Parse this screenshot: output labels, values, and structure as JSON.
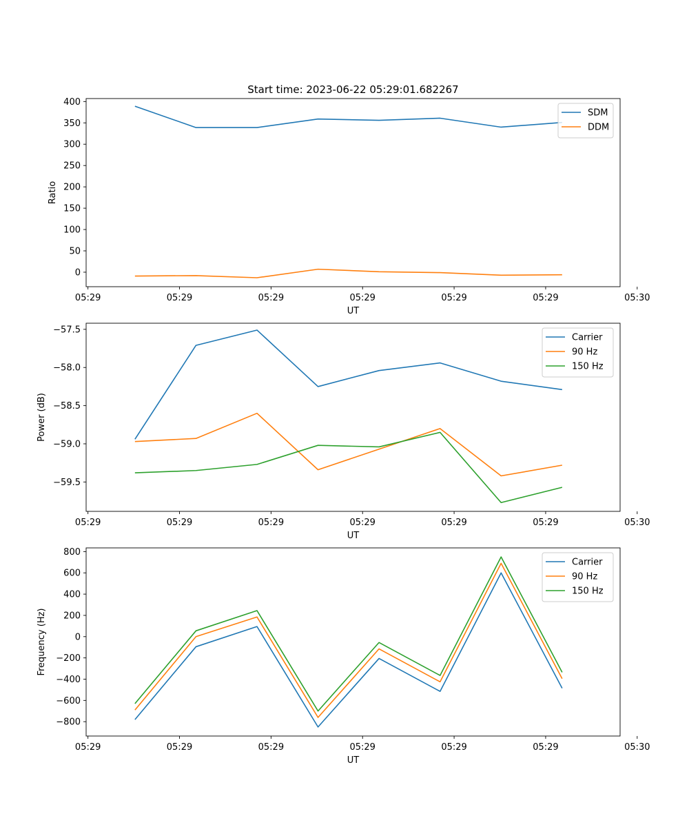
{
  "chart_data": [
    {
      "type": "line",
      "title": "Start time: 2023-06-22 05:29:01.682267",
      "xlabel": "UT",
      "ylabel": "Ratio",
      "x": [
        1,
        2,
        3,
        4,
        5,
        6,
        7,
        8
      ],
      "xlim": [
        0.2,
        8.95
      ],
      "x_ticks": [
        0.23,
        1.73,
        3.23,
        4.73,
        6.23,
        7.73,
        9.23
      ],
      "x_tick_labels": [
        "05:29",
        "05:29",
        "05:29",
        "05:29",
        "05:29",
        "05:29",
        "05:30"
      ],
      "ylim": [
        -34,
        407
      ],
      "y_ticks": [
        0,
        50,
        100,
        150,
        200,
        250,
        300,
        350,
        400
      ],
      "y_tick_labels": [
        "0",
        "50",
        "100",
        "150",
        "200",
        "250",
        "300",
        "350",
        "400"
      ],
      "legend": "top-right",
      "series": [
        {
          "name": "SDM",
          "color": "#1f77b4",
          "values": [
            389,
            339,
            339,
            359,
            356,
            361,
            340,
            351
          ]
        },
        {
          "name": "DDM",
          "color": "#ff7f0e",
          "values": [
            -9,
            -8,
            -13,
            7,
            1,
            -1,
            -7,
            -6
          ]
        }
      ]
    },
    {
      "type": "line",
      "title": "",
      "xlabel": "UT",
      "ylabel": "Power (dB)",
      "x": [
        1,
        2,
        3,
        4,
        5,
        6,
        7,
        8
      ],
      "xlim": [
        0.2,
        8.95
      ],
      "x_ticks": [
        0.23,
        1.73,
        3.23,
        4.73,
        6.23,
        7.73,
        9.23
      ],
      "x_tick_labels": [
        "05:29",
        "05:29",
        "05:29",
        "05:29",
        "05:29",
        "05:29",
        "05:30"
      ],
      "ylim": [
        -59.885,
        -57.42
      ],
      "y_ticks": [
        -59.5,
        -59.0,
        -58.5,
        -58.0,
        -57.5
      ],
      "y_tick_labels": [
        "−59.5",
        "−59.0",
        "−58.5",
        "−58.0",
        "−57.5"
      ],
      "legend": "top-right",
      "series": [
        {
          "name": "Carrier",
          "color": "#1f77b4",
          "values": [
            -58.94,
            -57.71,
            -57.51,
            -58.25,
            -58.04,
            -57.94,
            -58.18,
            -58.29
          ]
        },
        {
          "name": "90 Hz",
          "color": "#ff7f0e",
          "values": [
            -58.97,
            -58.93,
            -58.6,
            -59.34,
            -59.07,
            -58.8,
            -59.42,
            -59.28
          ]
        },
        {
          "name": "150 Hz",
          "color": "#2ca02c",
          "values": [
            -59.38,
            -59.35,
            -59.27,
            -59.02,
            -59.04,
            -58.85,
            -59.77,
            -59.57
          ]
        }
      ]
    },
    {
      "type": "line",
      "title": "",
      "xlabel": "UT",
      "ylabel": "Frequency (Hz)",
      "x": [
        1,
        2,
        3,
        4,
        5,
        6,
        7,
        8
      ],
      "xlim": [
        0.2,
        8.95
      ],
      "x_ticks": [
        0.23,
        1.73,
        3.23,
        4.73,
        6.23,
        7.73,
        9.23
      ],
      "x_tick_labels": [
        "05:29",
        "05:29",
        "05:29",
        "05:29",
        "05:29",
        "05:29",
        "05:30"
      ],
      "ylim": [
        -935,
        835
      ],
      "y_ticks": [
        -800,
        -600,
        -400,
        -200,
        0,
        200,
        400,
        600,
        800
      ],
      "y_tick_labels": [
        "−800",
        "−600",
        "−400",
        "−200",
        "0",
        "200",
        "400",
        "600",
        "800"
      ],
      "legend": "top-right",
      "series": [
        {
          "name": "Carrier",
          "color": "#1f77b4",
          "values": [
            -780,
            -95,
            95,
            -850,
            -205,
            -515,
            600,
            -485
          ]
        },
        {
          "name": "90 Hz",
          "color": "#ff7f0e",
          "values": [
            -690,
            0,
            185,
            -760,
            -115,
            -425,
            690,
            -395
          ]
        },
        {
          "name": "150 Hz",
          "color": "#2ca02c",
          "values": [
            -630,
            55,
            245,
            -700,
            -55,
            -365,
            750,
            -335
          ]
        }
      ]
    }
  ]
}
